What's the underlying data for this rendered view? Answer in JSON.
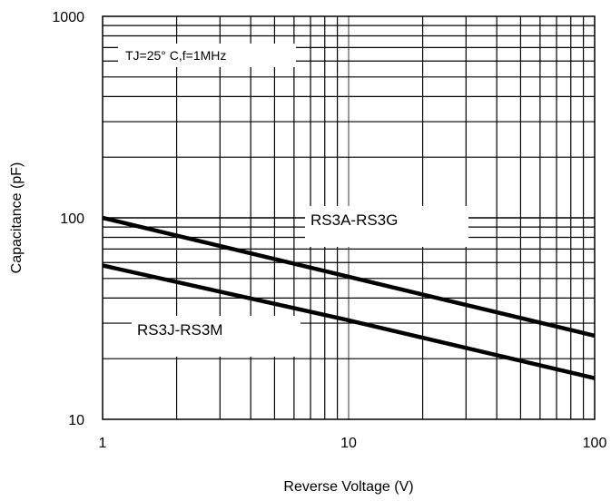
{
  "chart_data": {
    "type": "line",
    "title": "",
    "xlabel": "Reverse Voltage (V)",
    "ylabel": "Capacitance (pF)",
    "x_scale": "log",
    "y_scale": "log",
    "xlim": [
      1,
      100
    ],
    "ylim": [
      10,
      1000
    ],
    "grid": true,
    "x_ticks": [
      "1",
      "10",
      "100"
    ],
    "y_ticks": [
      "10",
      "100",
      "1000"
    ],
    "series": [
      {
        "name": "RS3A-RS3G",
        "x": [
          1,
          10,
          100
        ],
        "y": [
          100,
          51,
          26
        ]
      },
      {
        "name": "RS3J-RS3M",
        "x": [
          1,
          10,
          100
        ],
        "y": [
          58,
          31,
          16
        ]
      }
    ],
    "annotations": [
      {
        "text": "TJ=25° C,f=1MHz"
      }
    ],
    "colors": {
      "series": "#000000",
      "grid": "#000000",
      "highlight_gridline": "#9a9a9a"
    }
  }
}
